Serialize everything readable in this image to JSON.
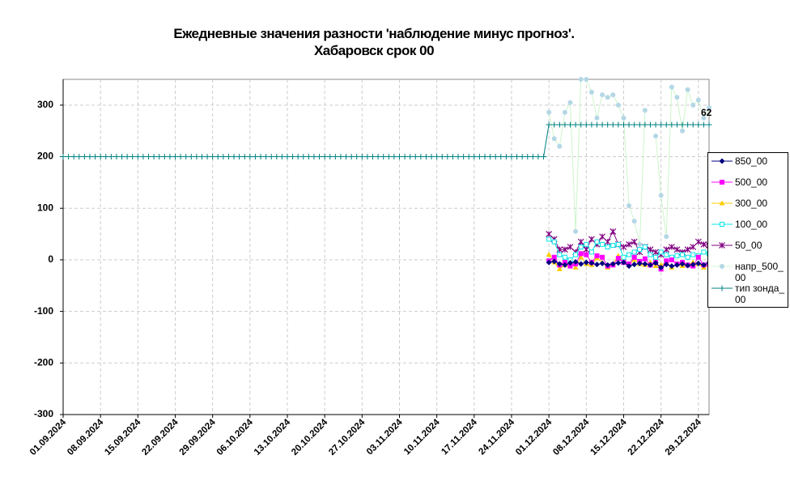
{
  "chart_data": {
    "type": "line",
    "title": "Ежедневные значения разности 'наблюдение минус прогноз'.",
    "subtitle": "Хабаровск    срок 00",
    "annotation": "62",
    "x": [
      "01.09.2024",
      "02.09.2024",
      "03.09.2024",
      "04.09.2024",
      "05.09.2024",
      "06.09.2024",
      "07.09.2024",
      "08.09.2024",
      "09.09.2024",
      "10.09.2024",
      "11.09.2024",
      "12.09.2024",
      "13.09.2024",
      "14.09.2024",
      "15.09.2024",
      "16.09.2024",
      "17.09.2024",
      "18.09.2024",
      "19.09.2024",
      "20.09.2024",
      "21.09.2024",
      "22.09.2024",
      "23.09.2024",
      "24.09.2024",
      "25.09.2024",
      "26.09.2024",
      "27.09.2024",
      "28.09.2024",
      "29.09.2024",
      "30.09.2024",
      "01.10.2024",
      "02.10.2024",
      "03.10.2024",
      "04.10.2024",
      "05.10.2024",
      "06.10.2024",
      "07.10.2024",
      "08.10.2024",
      "09.10.2024",
      "10.10.2024",
      "11.10.2024",
      "12.10.2024",
      "13.10.2024",
      "14.10.2024",
      "15.10.2024",
      "16.10.2024",
      "17.10.2024",
      "18.10.2024",
      "19.10.2024",
      "20.10.2024",
      "21.10.2024",
      "22.10.2024",
      "23.10.2024",
      "24.10.2024",
      "25.10.2024",
      "26.10.2024",
      "27.10.2024",
      "28.10.2024",
      "29.10.2024",
      "30.10.2024",
      "31.10.2024",
      "01.11.2024",
      "02.11.2024",
      "03.11.2024",
      "04.11.2024",
      "05.11.2024",
      "06.11.2024",
      "07.11.2024",
      "08.11.2024",
      "09.11.2024",
      "10.11.2024",
      "11.11.2024",
      "12.11.2024",
      "13.11.2024",
      "14.11.2024",
      "15.11.2024",
      "16.11.2024",
      "17.11.2024",
      "18.11.2024",
      "19.11.2024",
      "20.11.2024",
      "21.11.2024",
      "22.11.2024",
      "23.11.2024",
      "24.11.2024",
      "25.11.2024",
      "26.11.2024",
      "27.11.2024",
      "28.11.2024",
      "29.11.2024",
      "30.11.2024",
      "01.12.2024",
      "02.12.2024",
      "03.12.2024",
      "04.12.2024",
      "05.12.2024",
      "06.12.2024",
      "07.12.2024",
      "08.12.2024",
      "09.12.2024",
      "10.12.2024",
      "11.12.2024",
      "12.12.2024",
      "13.12.2024",
      "14.12.2024",
      "15.12.2024",
      "16.12.2024",
      "17.12.2024",
      "18.12.2024",
      "19.12.2024",
      "20.12.2024",
      "21.12.2024",
      "22.12.2024",
      "23.12.2024",
      "24.12.2024",
      "25.12.2024",
      "26.12.2024",
      "27.12.2024",
      "28.12.2024",
      "29.12.2024",
      "30.12.2024",
      "31.12.2024"
    ],
    "xlim": [
      "01.09.2024",
      "31.12.2024"
    ],
    "xticks": [
      "01.09.2024",
      "08.09.2024",
      "15.09.2024",
      "22.09.2024",
      "29.09.2024",
      "06.10.2024",
      "13.10.2024",
      "20.10.2024",
      "27.10.2024",
      "03.11.2024",
      "10.11.2024",
      "17.11.2024",
      "24.11.2024",
      "01.12.2024",
      "08.12.2024",
      "15.12.2024",
      "22.12.2024",
      "29.12.2024"
    ],
    "ylim": [
      -300,
      350
    ],
    "yticks": [
      -300,
      -200,
      -100,
      0,
      100,
      200,
      300
    ],
    "grid": true,
    "legend": "right",
    "series": [
      {
        "name": "850_00",
        "color": "#000080",
        "marker": "diamond",
        "values": [
          null,
          null,
          null,
          null,
          null,
          null,
          null,
          null,
          null,
          null,
          null,
          null,
          null,
          null,
          null,
          null,
          null,
          null,
          null,
          null,
          null,
          null,
          null,
          null,
          null,
          null,
          null,
          null,
          null,
          null,
          null,
          null,
          null,
          null,
          null,
          null,
          null,
          null,
          null,
          null,
          null,
          null,
          null,
          null,
          null,
          null,
          null,
          null,
          null,
          null,
          null,
          null,
          null,
          null,
          null,
          null,
          null,
          null,
          null,
          null,
          null,
          null,
          null,
          null,
          null,
          null,
          null,
          null,
          null,
          null,
          null,
          null,
          null,
          null,
          null,
          null,
          null,
          null,
          null,
          null,
          null,
          null,
          null,
          null,
          null,
          null,
          null,
          null,
          null,
          null,
          null,
          -5,
          -3,
          -8,
          -10,
          -6,
          -4,
          -8,
          -5,
          -6,
          -9,
          -7,
          -10,
          -8,
          -6,
          -5,
          -12,
          -9,
          -7,
          -8,
          -10,
          -6,
          -15,
          -9,
          -12,
          -10,
          -8,
          -11,
          -9,
          -7,
          -10,
          -6
        ]
      },
      {
        "name": "500_00",
        "color": "#ff00ff",
        "marker": "square",
        "values": [
          null,
          null,
          null,
          null,
          null,
          null,
          null,
          null,
          null,
          null,
          null,
          null,
          null,
          null,
          null,
          null,
          null,
          null,
          null,
          null,
          null,
          null,
          null,
          null,
          null,
          null,
          null,
          null,
          null,
          null,
          null,
          null,
          null,
          null,
          null,
          null,
          null,
          null,
          null,
          null,
          null,
          null,
          null,
          null,
          null,
          null,
          null,
          null,
          null,
          null,
          null,
          null,
          null,
          null,
          null,
          null,
          null,
          null,
          null,
          null,
          null,
          null,
          null,
          null,
          null,
          null,
          null,
          null,
          null,
          null,
          null,
          null,
          null,
          null,
          null,
          null,
          null,
          null,
          null,
          null,
          null,
          null,
          null,
          null,
          null,
          null,
          null,
          null,
          null,
          null,
          null,
          -2,
          5,
          -10,
          -5,
          -12,
          -8,
          12,
          10,
          -5,
          8,
          5,
          -12,
          -10,
          3,
          -5,
          -8,
          5,
          -3,
          2,
          -10,
          -5,
          -18,
          -2,
          0,
          -8,
          -5,
          -10,
          -12,
          5,
          -10,
          -8
        ]
      },
      {
        "name": "300_00",
        "color": "#ffcc00",
        "marker": "triangle",
        "values": [
          null,
          null,
          null,
          null,
          null,
          null,
          null,
          null,
          null,
          null,
          null,
          null,
          null,
          null,
          null,
          null,
          null,
          null,
          null,
          null,
          null,
          null,
          null,
          null,
          null,
          null,
          null,
          null,
          null,
          null,
          null,
          null,
          null,
          null,
          null,
          null,
          null,
          null,
          null,
          null,
          null,
          null,
          null,
          null,
          null,
          null,
          null,
          null,
          null,
          null,
          null,
          null,
          null,
          null,
          null,
          null,
          null,
          null,
          null,
          null,
          null,
          null,
          null,
          null,
          null,
          null,
          null,
          null,
          null,
          null,
          null,
          null,
          null,
          null,
          null,
          null,
          null,
          null,
          null,
          null,
          null,
          null,
          null,
          null,
          null,
          null,
          null,
          null,
          null,
          null,
          null,
          10,
          -5,
          -18,
          -10,
          -5,
          -15,
          5,
          -8,
          -10,
          3,
          -5,
          -15,
          -8,
          8,
          -5,
          -10,
          0,
          -8,
          -10,
          -5,
          -12,
          -10,
          -5,
          -15,
          -8,
          -12,
          -10,
          -5,
          -8,
          -15,
          -10
        ]
      },
      {
        "name": "100_00",
        "color": "#00e5e5",
        "marker": "opensquare",
        "values": [
          null,
          null,
          null,
          null,
          null,
          null,
          null,
          null,
          null,
          null,
          null,
          null,
          null,
          null,
          null,
          null,
          null,
          null,
          null,
          null,
          null,
          null,
          null,
          null,
          null,
          null,
          null,
          null,
          null,
          null,
          null,
          null,
          null,
          null,
          null,
          null,
          null,
          null,
          null,
          null,
          null,
          null,
          null,
          null,
          null,
          null,
          null,
          null,
          null,
          null,
          null,
          null,
          null,
          null,
          null,
          null,
          null,
          null,
          null,
          null,
          null,
          null,
          null,
          null,
          null,
          null,
          null,
          null,
          null,
          null,
          null,
          null,
          null,
          null,
          null,
          null,
          null,
          null,
          null,
          null,
          null,
          null,
          null,
          null,
          null,
          null,
          null,
          null,
          null,
          null,
          null,
          40,
          35,
          10,
          5,
          0,
          10,
          25,
          30,
          15,
          35,
          30,
          25,
          28,
          30,
          5,
          10,
          15,
          20,
          25,
          10,
          5,
          15,
          10,
          5,
          8,
          10,
          5,
          10,
          8,
          15,
          12
        ]
      },
      {
        "name": "50_00",
        "color": "#800080",
        "marker": "star",
        "values": [
          null,
          null,
          null,
          null,
          null,
          null,
          null,
          null,
          null,
          null,
          null,
          null,
          null,
          null,
          null,
          null,
          null,
          null,
          null,
          null,
          null,
          null,
          null,
          null,
          null,
          null,
          null,
          null,
          null,
          null,
          null,
          null,
          null,
          null,
          null,
          null,
          null,
          null,
          null,
          null,
          null,
          null,
          null,
          null,
          null,
          null,
          null,
          null,
          null,
          null,
          null,
          null,
          null,
          null,
          null,
          null,
          null,
          null,
          null,
          null,
          null,
          null,
          null,
          null,
          null,
          null,
          null,
          null,
          null,
          null,
          null,
          null,
          null,
          null,
          null,
          null,
          null,
          null,
          null,
          null,
          null,
          null,
          null,
          null,
          null,
          null,
          null,
          null,
          null,
          null,
          null,
          50,
          40,
          20,
          20,
          25,
          15,
          35,
          20,
          40,
          30,
          45,
          35,
          55,
          30,
          25,
          30,
          35,
          15,
          25,
          20,
          15,
          10,
          20,
          25,
          20,
          15,
          20,
          25,
          35,
          30,
          28
        ]
      },
      {
        "name": "напр_500_00",
        "color": "#b4d7e6",
        "line_color": "#ccf5cc",
        "marker": "circle",
        "values": [
          null,
          null,
          null,
          null,
          null,
          null,
          null,
          null,
          null,
          null,
          null,
          null,
          null,
          null,
          null,
          null,
          null,
          null,
          null,
          null,
          null,
          null,
          null,
          null,
          null,
          null,
          null,
          null,
          null,
          null,
          null,
          null,
          null,
          null,
          null,
          null,
          null,
          null,
          null,
          null,
          null,
          null,
          null,
          null,
          null,
          null,
          null,
          null,
          null,
          null,
          null,
          null,
          null,
          null,
          null,
          null,
          null,
          null,
          null,
          null,
          null,
          null,
          null,
          null,
          null,
          null,
          null,
          null,
          null,
          null,
          null,
          null,
          null,
          null,
          null,
          null,
          null,
          null,
          null,
          null,
          null,
          null,
          null,
          null,
          null,
          null,
          null,
          null,
          null,
          null,
          null,
          286,
          235,
          220,
          286,
          305,
          55,
          350,
          350,
          325,
          275,
          320,
          315,
          320,
          300,
          275,
          105,
          75,
          30,
          290,
          null,
          240,
          125,
          45,
          335,
          315,
          250,
          330,
          300,
          310,
          275,
          295
        ]
      },
      {
        "name": "тип зонда_00",
        "color": "#008080",
        "marker": "plus",
        "values": [
          200,
          200,
          200,
          200,
          200,
          200,
          200,
          200,
          200,
          200,
          200,
          200,
          200,
          200,
          200,
          200,
          200,
          200,
          200,
          200,
          200,
          200,
          200,
          200,
          200,
          200,
          200,
          200,
          200,
          200,
          200,
          200,
          200,
          200,
          200,
          200,
          200,
          200,
          200,
          200,
          200,
          200,
          200,
          200,
          200,
          200,
          200,
          200,
          200,
          200,
          200,
          200,
          200,
          200,
          200,
          200,
          200,
          200,
          200,
          200,
          200,
          200,
          200,
          200,
          200,
          200,
          200,
          200,
          200,
          200,
          200,
          200,
          200,
          200,
          200,
          200,
          200,
          200,
          200,
          200,
          200,
          200,
          200,
          200,
          200,
          200,
          200,
          200,
          200,
          200,
          200,
          262,
          262,
          262,
          262,
          262,
          262,
          262,
          262,
          262,
          262,
          262,
          262,
          262,
          262,
          262,
          262,
          262,
          262,
          262,
          262,
          262,
          262,
          262,
          262,
          262,
          262,
          262,
          262,
          262,
          262,
          262
        ]
      }
    ]
  }
}
